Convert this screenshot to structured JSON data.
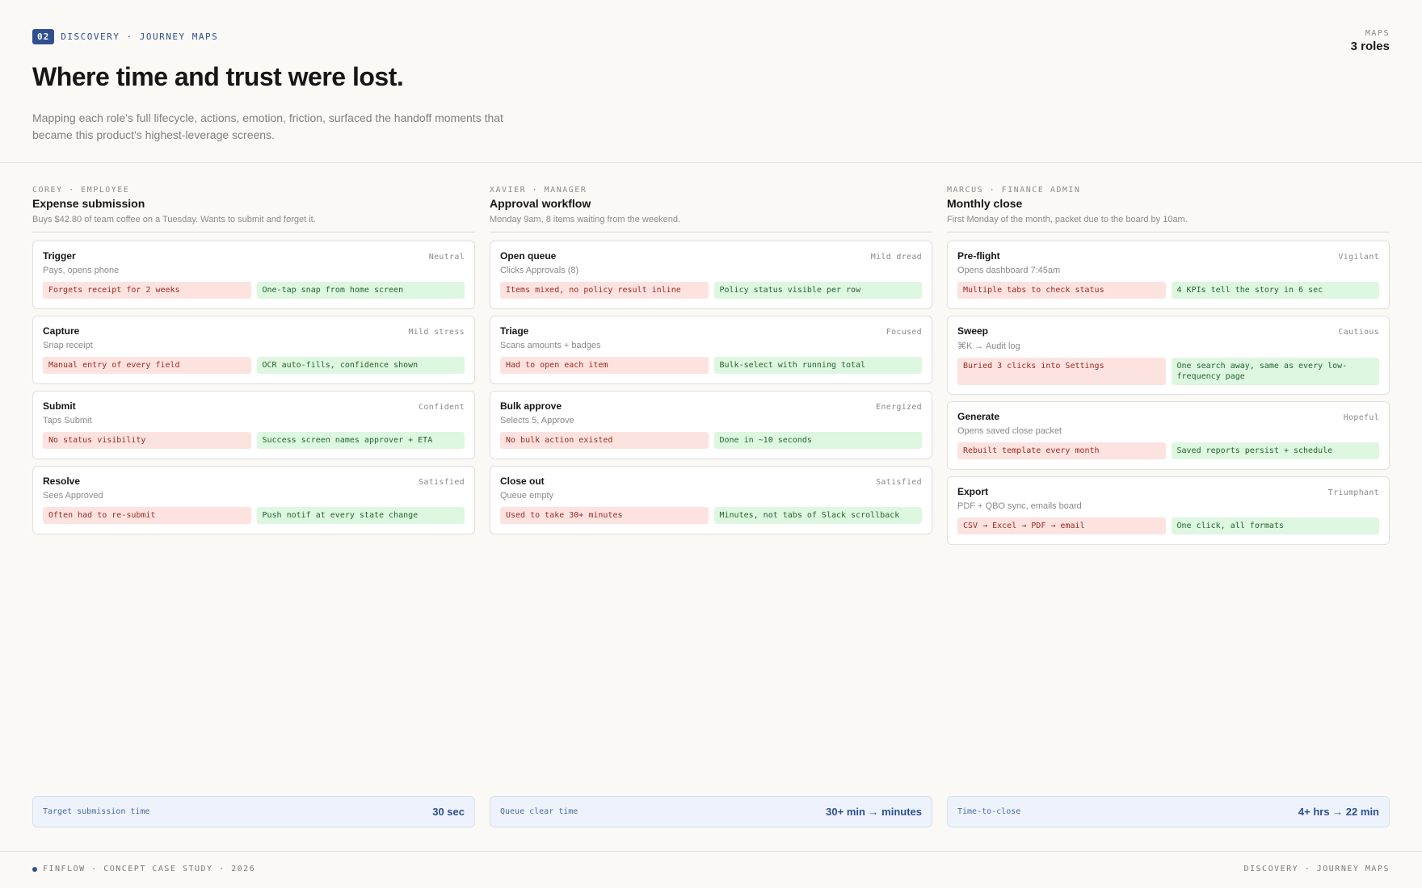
{
  "header": {
    "badge": "02",
    "eyebrow": "DISCOVERY · JOURNEY MAPS",
    "title": "Where time and trust were lost.",
    "subtitle": "Mapping each role's full lifecycle, actions, emotion, friction, surfaced the handoff moments that became this product's highest-leverage screens.",
    "meta_label": "MAPS",
    "meta_value": "3 roles"
  },
  "columns": [
    {
      "role": "COREY · EMPLOYEE",
      "title": "Expense submission",
      "desc": "Buys $42.80 of team coffee on a Tuesday. Wants to submit and forget it.",
      "steps": [
        {
          "step": "Trigger",
          "mood": "Neutral",
          "action": "Pays, opens phone",
          "pain": "Forgets receipt for 2 weeks",
          "gain": "One-tap snap from home screen"
        },
        {
          "step": "Capture",
          "mood": "Mild stress",
          "action": "Snap receipt",
          "pain": "Manual entry of every field",
          "gain": "OCR auto-fills, confidence shown"
        },
        {
          "step": "Submit",
          "mood": "Confident",
          "action": "Taps Submit",
          "pain": "No status visibility",
          "gain": "Success screen names approver + ETA"
        },
        {
          "step": "Resolve",
          "mood": "Satisfied",
          "action": "Sees Approved",
          "pain": "Often had to re-submit",
          "gain": "Push notif at every state change"
        }
      ]
    },
    {
      "role": "XAVIER · MANAGER",
      "title": "Approval workflow",
      "desc": "Monday 9am, 8 items waiting from the weekend.",
      "steps": [
        {
          "step": "Open queue",
          "mood": "Mild dread",
          "action": "Clicks Approvals (8)",
          "pain": "Items mixed, no policy result inline",
          "gain": "Policy status visible per row"
        },
        {
          "step": "Triage",
          "mood": "Focused",
          "action": "Scans amounts + badges",
          "pain": "Had to open each item",
          "gain": "Bulk-select with running total"
        },
        {
          "step": "Bulk approve",
          "mood": "Energized",
          "action": "Selects 5, Approve",
          "pain": "No bulk action existed",
          "gain": "Done in ~10 seconds"
        },
        {
          "step": "Close out",
          "mood": "Satisfied",
          "action": "Queue empty",
          "pain": "Used to take 30+ minutes",
          "gain": "Minutes, not tabs of Slack scrollback"
        }
      ]
    },
    {
      "role": "MARCUS · FINANCE ADMIN",
      "title": "Monthly close",
      "desc": "First Monday of the month, packet due to the board by 10am.",
      "steps": [
        {
          "step": "Pre-flight",
          "mood": "Vigilant",
          "action": "Opens dashboard 7:45am",
          "pain": "Multiple tabs to check status",
          "gain": "4 KPIs tell the story in 6 sec"
        },
        {
          "step": "Sweep",
          "mood": "Cautious",
          "action": "⌘K → Audit log",
          "pain": "Buried 3 clicks into Settings",
          "gain": "One search away, same as every low-frequency page"
        },
        {
          "step": "Generate",
          "mood": "Hopeful",
          "action": "Opens saved close packet",
          "pain": "Rebuilt template every month",
          "gain": "Saved reports persist + schedule"
        },
        {
          "step": "Export",
          "mood": "Triumphant",
          "action": "PDF + QBO sync, emails board",
          "pain": "CSV → Excel → PDF → email",
          "gain": "One click, all formats"
        }
      ]
    }
  ],
  "metrics": [
    {
      "label": "Target submission time",
      "value": "30 sec"
    },
    {
      "label": "Queue clear time",
      "value": "30+ min → minutes"
    },
    {
      "label": "Time-to-close",
      "value": "4+ hrs → 22 min"
    }
  ],
  "footer": {
    "left": "FINFLOW · CONCEPT CASE STUDY · 2026",
    "right": "DISCOVERY · JOURNEY MAPS"
  },
  "colors": {
    "accent": "#2f4f8f",
    "pain_bg": "#fde3e0",
    "gain_bg": "#def7e0",
    "background": "#faf9f6"
  }
}
